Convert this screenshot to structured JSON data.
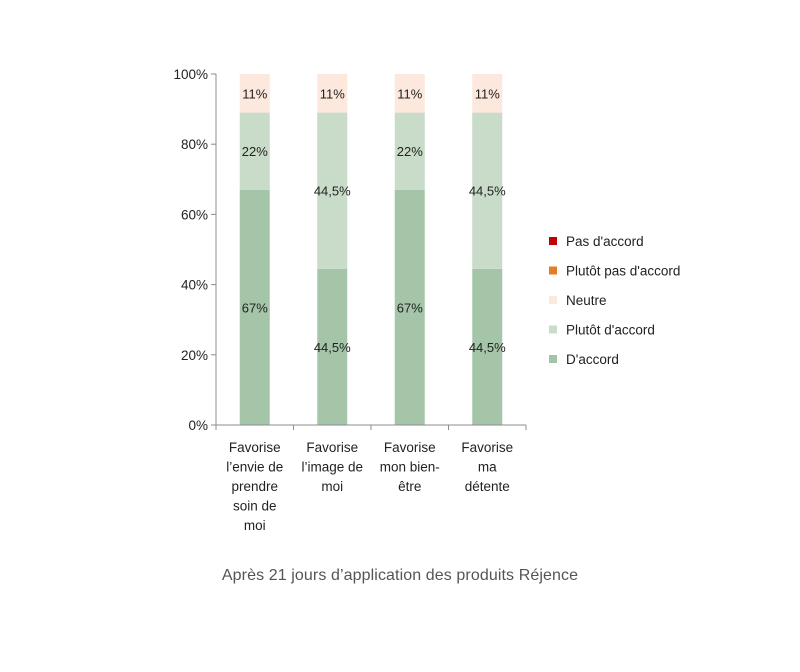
{
  "chart_data": {
    "type": "bar",
    "stacked": true,
    "categories": [
      [
        "Favorise",
        "l’envie de",
        "prendre",
        "soin de",
        "moi"
      ],
      [
        "Favorise",
        "l’image de",
        "moi"
      ],
      [
        "Favorise",
        "mon bien-",
        "être"
      ],
      [
        "Favorise",
        "ma",
        "détente"
      ]
    ],
    "series": [
      {
        "name": "D'accord",
        "color": "#a5c5a9",
        "values": [
          67,
          44.5,
          67,
          44.5
        ],
        "labels": [
          "67%",
          "44,5%",
          "67%",
          "44,5%"
        ]
      },
      {
        "name": "Plutôt d'accord",
        "color": "#c9dcca",
        "values": [
          22,
          44.5,
          22,
          44.5
        ],
        "labels": [
          "22%",
          "44,5%",
          "22%",
          "44,5%"
        ]
      },
      {
        "name": "Neutre",
        "color": "#fce8dc",
        "values": [
          11,
          11,
          11,
          11
        ],
        "labels": [
          "11%",
          "11%",
          "11%",
          "11%"
        ]
      },
      {
        "name": "Plutôt pas d'accord",
        "color": "#e57d23",
        "values": [
          0,
          0,
          0,
          0
        ],
        "labels": []
      },
      {
        "name": "Pas d'accord",
        "color": "#c00000",
        "values": [
          0,
          0,
          0,
          0
        ],
        "labels": []
      }
    ],
    "legend": [
      "Pas d'accord",
      "Plutôt pas d'accord",
      "Neutre",
      "Plutôt d'accord",
      "D'accord"
    ],
    "legend_position": "right",
    "yticks": [
      "0%",
      "20%",
      "40%",
      "60%",
      "80%",
      "100%"
    ],
    "ylim": [
      0,
      100
    ],
    "grid": false
  },
  "caption": "Après 21 jours d’application des produits Réjence"
}
